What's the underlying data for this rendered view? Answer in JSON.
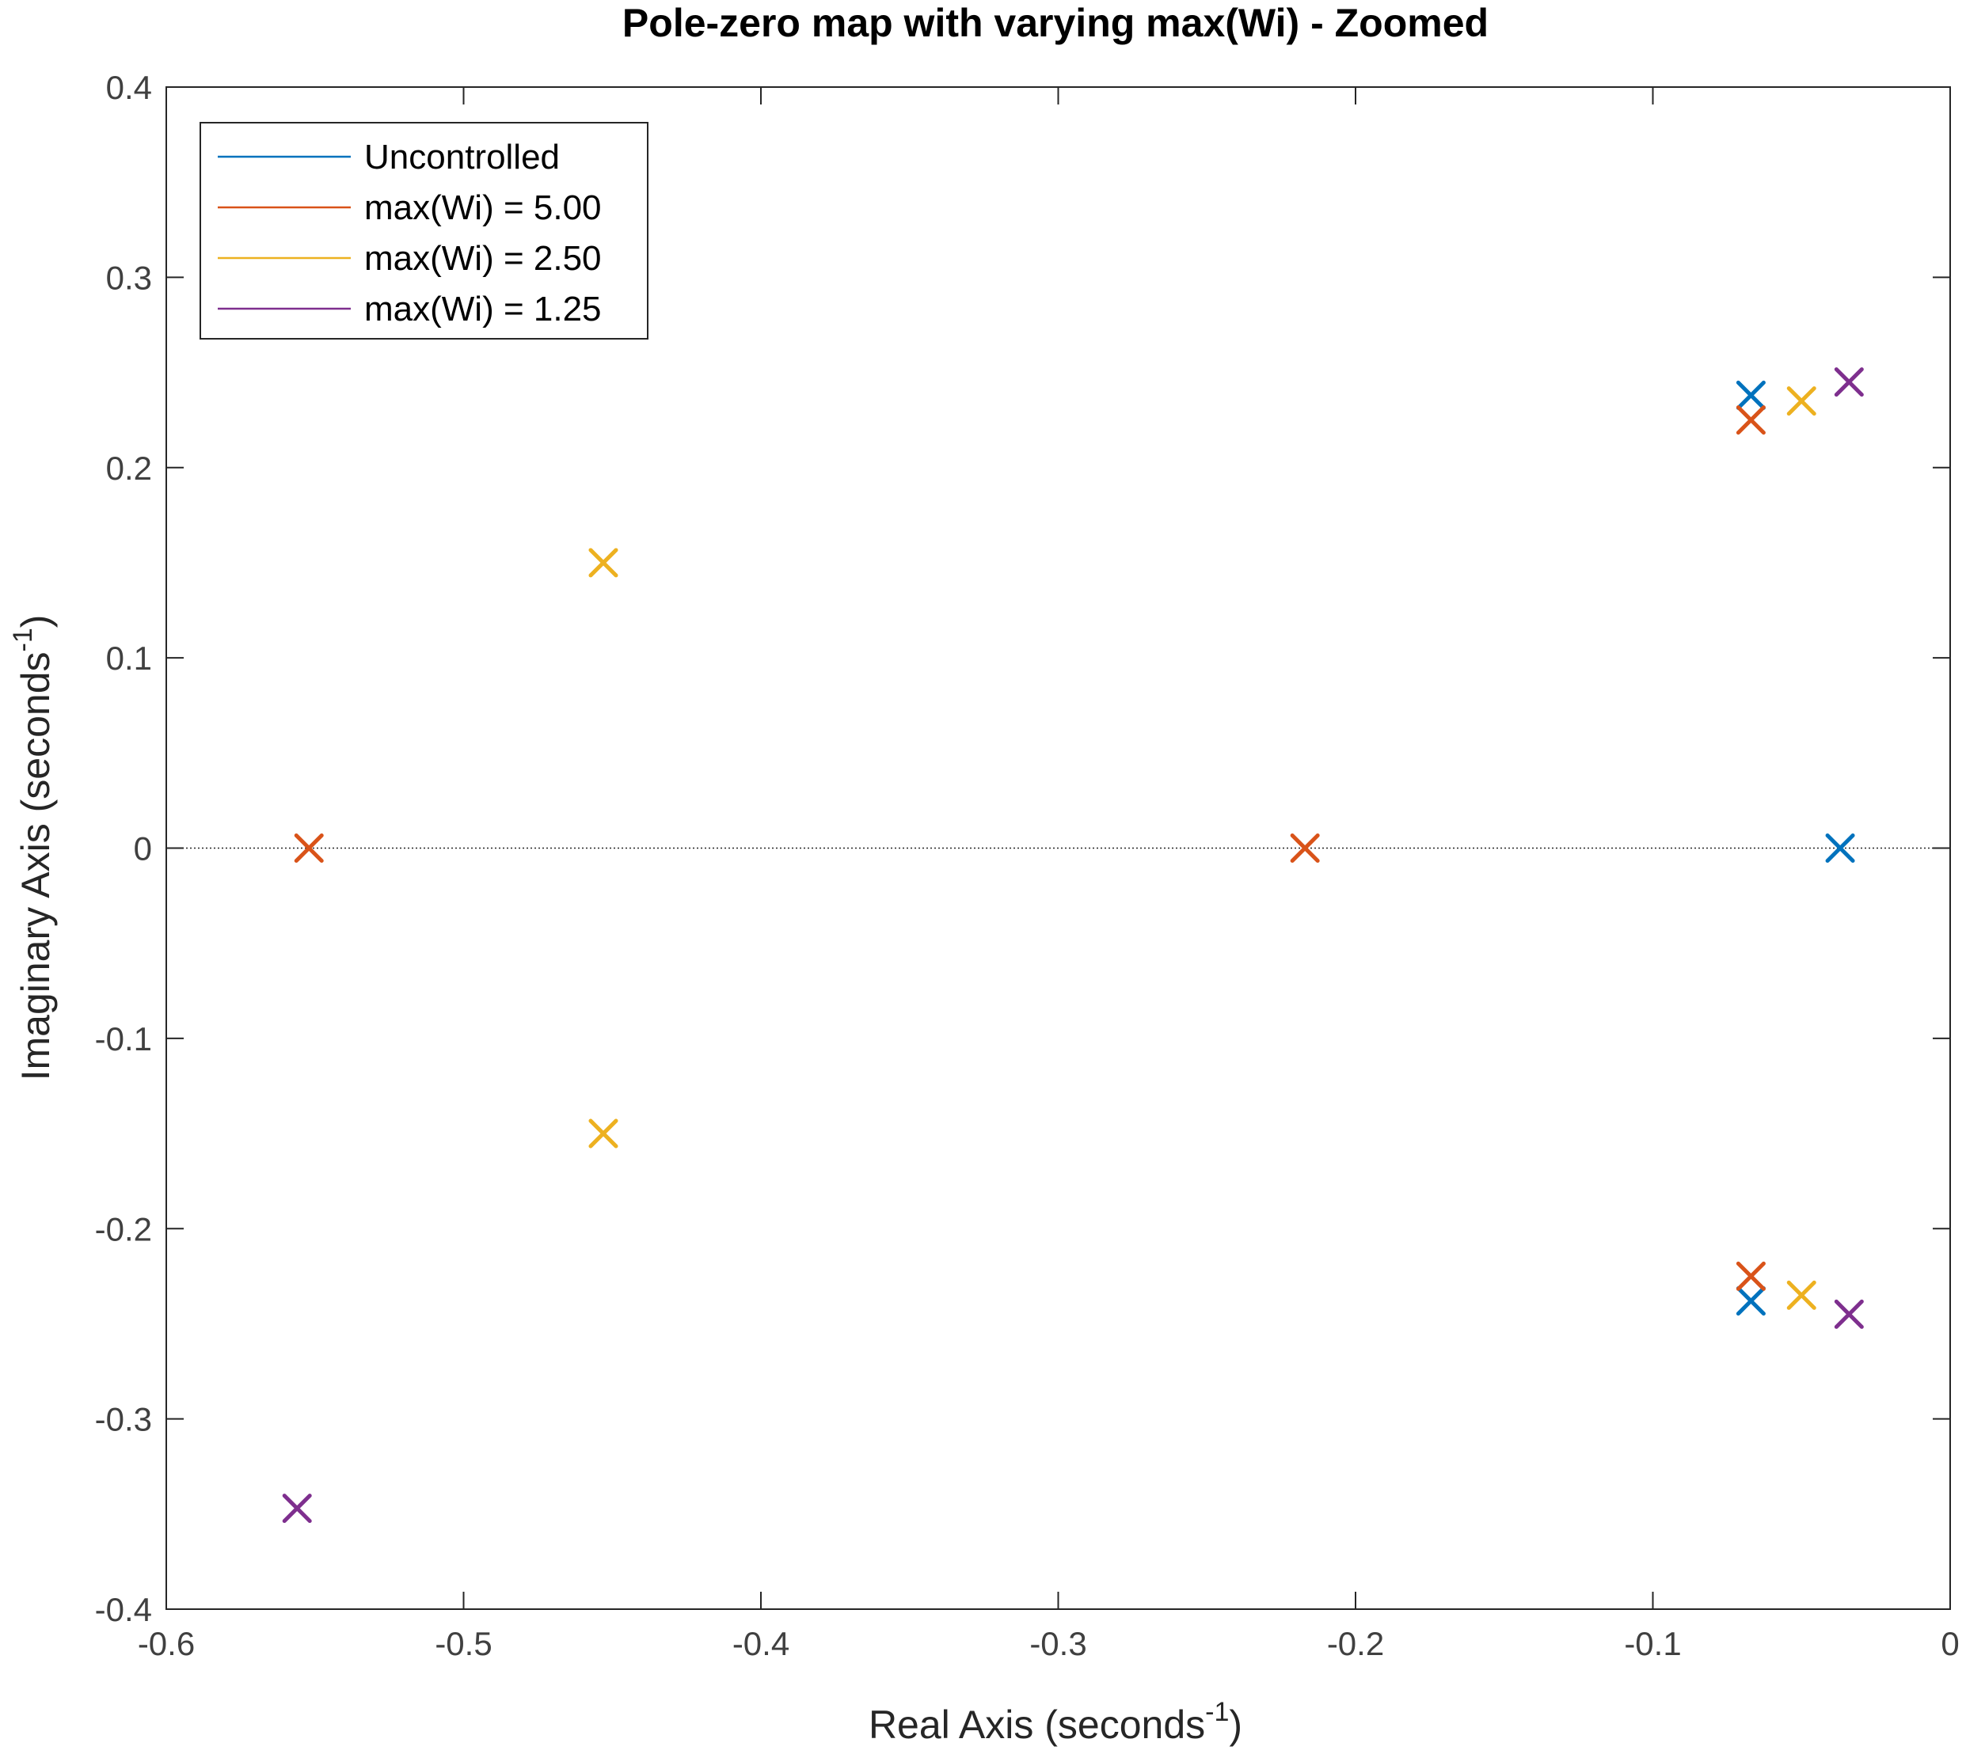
{
  "chart_data": {
    "type": "scatter",
    "title": "Pole-zero map with varying max(Wi) - Zoomed",
    "xlabel": "Real Axis (seconds",
    "xlabel_sup": "-1",
    "xlabel_end": ")",
    "ylabel": "Imaginary Axis (seconds",
    "ylabel_sup": "-1",
    "ylabel_end": ")",
    "xlim": [
      -0.6,
      0
    ],
    "ylim": [
      -0.4,
      0.4
    ],
    "x_ticks": [
      -0.6,
      -0.5,
      -0.4,
      -0.3,
      -0.2,
      -0.1,
      0
    ],
    "x_tick_labels": [
      "-0.6",
      "-0.5",
      "-0.4",
      "-0.3",
      "-0.2",
      "-0.1",
      "0"
    ],
    "y_ticks": [
      -0.4,
      -0.3,
      -0.2,
      -0.1,
      0,
      0.1,
      0.2,
      0.3,
      0.4
    ],
    "y_tick_labels": [
      "-0.4",
      "-0.3",
      "-0.2",
      "-0.1",
      "0",
      "0.1",
      "0.2",
      "0.3",
      "0.4"
    ],
    "grid": false,
    "zero_line": true,
    "marker": "x",
    "legend": {
      "position": "top-left"
    },
    "series": [
      {
        "name": "Uncontrolled",
        "color": "#0072BD",
        "points": [
          [
            -0.067,
            0.238
          ],
          [
            -0.067,
            -0.238
          ],
          [
            -0.037,
            0.0
          ]
        ]
      },
      {
        "name": "max(Wi) = 5.00",
        "color": "#D95319",
        "points": [
          [
            -0.067,
            0.225
          ],
          [
            -0.067,
            -0.225
          ],
          [
            -0.552,
            0.0
          ],
          [
            -0.217,
            0.0
          ]
        ]
      },
      {
        "name": "max(Wi) = 2.50",
        "color": "#EDB120",
        "points": [
          [
            -0.05,
            0.235
          ],
          [
            -0.05,
            -0.235
          ],
          [
            -0.453,
            0.15
          ],
          [
            -0.453,
            -0.15
          ]
        ]
      },
      {
        "name": "max(Wi) = 1.25",
        "color": "#7E2F8E",
        "points": [
          [
            -0.034,
            0.245
          ],
          [
            -0.034,
            -0.245
          ],
          [
            -0.556,
            -0.347
          ]
        ]
      }
    ]
  }
}
